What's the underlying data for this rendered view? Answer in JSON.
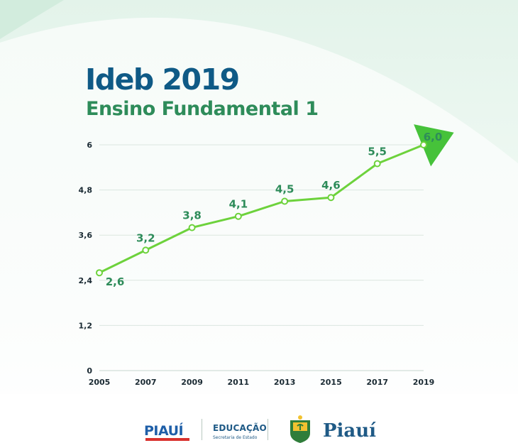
{
  "header": {
    "title": "Ideb 2019",
    "subtitle": "Ensino Fundamental 1"
  },
  "colors": {
    "title": "#0f5a86",
    "subtitle": "#2e8c5a",
    "line": "#6dd23c",
    "label": "#2e8c5a",
    "arrow": "#46c23a"
  },
  "chart_data": {
    "type": "line",
    "title": "Ideb 2019",
    "subtitle": "Ensino Fundamental 1",
    "xlabel": "",
    "ylabel": "",
    "x": [
      "2005",
      "2007",
      "2009",
      "2011",
      "2013",
      "2015",
      "2017",
      "2019"
    ],
    "series": [
      {
        "values": [
          2.6,
          3.2,
          3.8,
          4.1,
          4.5,
          4.6,
          5.5,
          6.0
        ],
        "labels": [
          "2,6",
          "3,2",
          "3,8",
          "4,1",
          "4,5",
          "4,6",
          "5,5",
          "6,0"
        ]
      }
    ],
    "y_ticks": [
      0,
      1.2,
      2.4,
      3.6,
      4.8,
      6
    ],
    "y_tick_labels": [
      "0",
      "1,2",
      "2,4",
      "3,6",
      "4,8",
      "6"
    ],
    "ylim": [
      0,
      6
    ],
    "grid": true,
    "end_marker": "arrow"
  },
  "footer": {
    "logo_state": "PIAUÍ",
    "logo_edu": "EDUCAÇÃO",
    "logo_edu_sub": "Secretaria de Estado",
    "logo_gov": "Piauí"
  }
}
